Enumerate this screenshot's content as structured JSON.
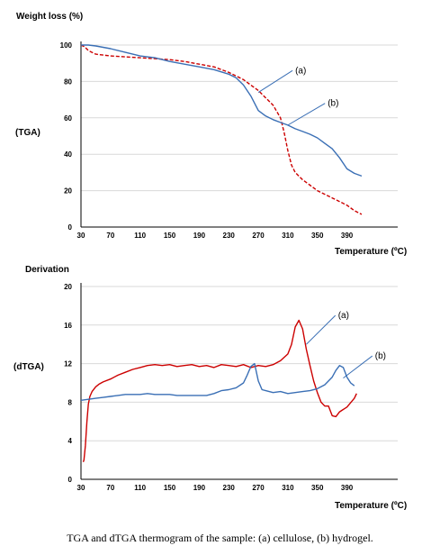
{
  "caption": "TGA and dTGA thermogram of the sample: (a) cellulose, (b) hydrogel.",
  "colors": {
    "series_a": "#cc0000",
    "series_b": "#3a6fb5",
    "grid": "#d9d9d9",
    "axis": "#000000"
  },
  "chart_data": [
    {
      "type": "line",
      "title": "Weight loss (%)",
      "ylabel": "(TGA)",
      "xlabel": "Temperature (ºC)",
      "xlim": [
        30,
        410
      ],
      "ylim": [
        0,
        100
      ],
      "xticks": [
        30,
        70,
        110,
        150,
        190,
        230,
        270,
        310,
        350,
        390
      ],
      "yticks": [
        0,
        20,
        40,
        60,
        80,
        100
      ],
      "grid": true,
      "series": [
        {
          "name": "(a)",
          "dashed": true,
          "x": [
            30,
            35,
            40,
            50,
            60,
            70,
            90,
            110,
            130,
            150,
            170,
            190,
            210,
            230,
            250,
            270,
            280,
            290,
            300,
            305,
            310,
            315,
            320,
            330,
            340,
            350,
            360,
            370,
            380,
            390,
            400,
            410
          ],
          "y": [
            100,
            99,
            97,
            95,
            94.5,
            94,
            93.5,
            93,
            92.5,
            92,
            91,
            89.5,
            88,
            85,
            81,
            75,
            71,
            67,
            60,
            52,
            42,
            34,
            30,
            26,
            23,
            20,
            18,
            16,
            14,
            12,
            9,
            7
          ]
        },
        {
          "name": "(b)",
          "dashed": false,
          "x": [
            30,
            40,
            50,
            70,
            90,
            110,
            130,
            150,
            170,
            190,
            210,
            230,
            240,
            250,
            260,
            270,
            280,
            290,
            300,
            310,
            320,
            330,
            340,
            350,
            360,
            370,
            380,
            390,
            400,
            410
          ],
          "y": [
            100,
            100,
            99.5,
            98,
            96,
            94,
            93,
            91,
            89.5,
            88,
            86.5,
            84,
            82,
            78,
            72,
            64,
            61,
            59,
            57.5,
            56,
            54,
            52.5,
            51,
            49,
            46,
            43,
            38,
            32,
            29.5,
            28
          ]
        }
      ],
      "annotations": [
        {
          "text": "(a)",
          "target_x": 270,
          "target_y": 74,
          "label_x": 320,
          "label_y": 86
        },
        {
          "text": "(b)",
          "target_x": 310,
          "target_y": 56,
          "label_x": 364,
          "label_y": 68
        }
      ]
    },
    {
      "type": "line",
      "title": "Derivation",
      "ylabel": "(dTGA)",
      "xlabel": "Temperature (ºC)",
      "xlim": [
        30,
        410
      ],
      "ylim": [
        0,
        20
      ],
      "xticks": [
        30,
        70,
        110,
        150,
        190,
        230,
        270,
        310,
        350,
        390
      ],
      "yticks": [
        0,
        4,
        8,
        12,
        16,
        20
      ],
      "grid": true,
      "series": [
        {
          "name": "(a)",
          "dashed": false,
          "x": [
            33,
            34,
            36,
            38,
            40,
            42,
            45,
            50,
            55,
            60,
            70,
            80,
            90,
            100,
            110,
            120,
            130,
            140,
            150,
            160,
            170,
            180,
            190,
            200,
            210,
            220,
            230,
            240,
            250,
            260,
            270,
            280,
            290,
            300,
            310,
            315,
            320,
            325,
            330,
            335,
            340,
            345,
            350,
            355,
            360,
            365,
            370,
            375,
            380,
            390,
            400,
            403
          ],
          "y": [
            1.8,
            2.0,
            3.5,
            6.0,
            7.8,
            8.6,
            9.1,
            9.6,
            9.9,
            10.1,
            10.4,
            10.8,
            11.1,
            11.4,
            11.6,
            11.8,
            11.9,
            11.8,
            11.9,
            11.7,
            11.8,
            11.9,
            11.7,
            11.8,
            11.6,
            11.9,
            11.8,
            11.7,
            11.9,
            11.6,
            11.8,
            11.7,
            11.9,
            12.3,
            13.0,
            14.0,
            15.8,
            16.5,
            15.6,
            13.5,
            11.8,
            10.2,
            9.0,
            8.0,
            7.6,
            7.6,
            6.6,
            6.5,
            7.0,
            7.5,
            8.4,
            8.9
          ]
        },
        {
          "name": "(b)",
          "dashed": false,
          "x": [
            30,
            40,
            50,
            60,
            70,
            80,
            90,
            100,
            110,
            120,
            130,
            140,
            150,
            160,
            170,
            180,
            190,
            200,
            210,
            220,
            230,
            240,
            250,
            255,
            260,
            265,
            270,
            275,
            280,
            290,
            300,
            310,
            320,
            330,
            340,
            350,
            360,
            370,
            375,
            380,
            385,
            390,
            395,
            400
          ],
          "y": [
            8.2,
            8.3,
            8.4,
            8.5,
            8.6,
            8.7,
            8.8,
            8.8,
            8.8,
            8.9,
            8.8,
            8.8,
            8.8,
            8.7,
            8.7,
            8.7,
            8.7,
            8.7,
            8.9,
            9.2,
            9.3,
            9.5,
            10.0,
            10.8,
            11.7,
            12.0,
            10.2,
            9.3,
            9.2,
            9.0,
            9.1,
            8.9,
            9.0,
            9.1,
            9.2,
            9.4,
            9.8,
            10.6,
            11.3,
            11.8,
            11.6,
            10.6,
            10.0,
            9.7
          ]
        }
      ],
      "annotations": [
        {
          "text": "(a)",
          "target_x": 335,
          "target_y": 14,
          "label_x": 378,
          "label_y": 17
        },
        {
          "text": "(b)",
          "target_x": 385,
          "target_y": 10.5,
          "label_x": 428,
          "label_y": 12.8
        }
      ]
    }
  ]
}
